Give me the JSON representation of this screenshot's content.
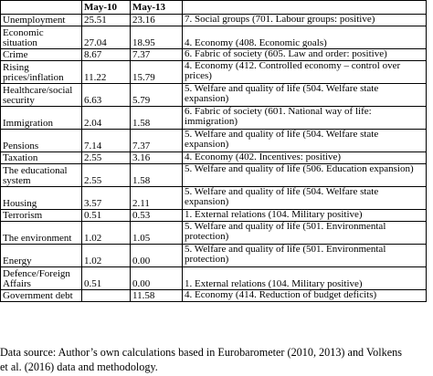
{
  "table": {
    "headers": [
      "",
      "May-10",
      "May-13",
      ""
    ],
    "rows": [
      {
        "issue": "Unemployment",
        "may10": "25.51",
        "may13": "23.16",
        "category": "7. Social groups (701. Labour groups: positive)"
      },
      {
        "issue": "Economic situation",
        "may10": "27.04",
        "may13": "18.95",
        "category": "4. Economy (408. Economic goals)"
      },
      {
        "issue": "Crime",
        "may10": "8.67",
        "may13": "7.37",
        "category": "6. Fabric of society (605. Law and order: positive)"
      },
      {
        "issue": "Rising prices/inflation",
        "may10": "11.22",
        "may13": "15.79",
        "category": "4. Economy (412. Controlled economy – control over prices)"
      },
      {
        "issue": "Healthcare/social security",
        "may10": "6.63",
        "may13": "5.79",
        "category": "5. Welfare and quality of life (504. Welfare state expansion)"
      },
      {
        "issue": "Immigration",
        "may10": "2.04",
        "may13": "1.58",
        "category": "6. Fabric of society (601. National way of life: immigration)"
      },
      {
        "issue": "Pensions",
        "may10": "7.14",
        "may13": "7.37",
        "category": "5. Welfare and quality of life (504. Welfare state expansion)"
      },
      {
        "issue": "Taxation",
        "may10": "2.55",
        "may13": "3.16",
        "category": "4. Economy (402. Incentives: positive)"
      },
      {
        "issue": "The educational system",
        "may10": "2.55",
        "may13": "1.58",
        "category": "5. Welfare and quality of life (506. Education expansion)"
      },
      {
        "issue": "Housing",
        "may10": "3.57",
        "may13": "2.11",
        "category": "5. Welfare and quality of life (504. Welfare state expansion)"
      },
      {
        "issue": "Terrorism",
        "may10": "0.51",
        "may13": "0.53",
        "category": "1. External relations (104. Military positive)"
      },
      {
        "issue": "The environment",
        "may10": "1.02",
        "may13": "1.05",
        "category": "5. Welfare and quality of life (501. Environmental protection)"
      },
      {
        "issue": "Energy",
        "may10": "1.02",
        "may13": "0.00",
        "category": "5. Welfare and quality of life (501. Environmental protection)"
      },
      {
        "issue": "Defence/Foreign Affairs",
        "may10": "0.51",
        "may13": "0.00",
        "category": "1. External relations (104. Military positive)"
      },
      {
        "issue": "Government debt",
        "may10": "",
        "may13": "11.58",
        "category": "4. Economy (414. Reduction of budget deficits)"
      }
    ]
  },
  "caption": {
    "line1": "Data source: Author’s own calculations based in Eurobarometer (2010, 2013) and Volkens",
    "line2": "et al. (2016) data and methodology."
  }
}
